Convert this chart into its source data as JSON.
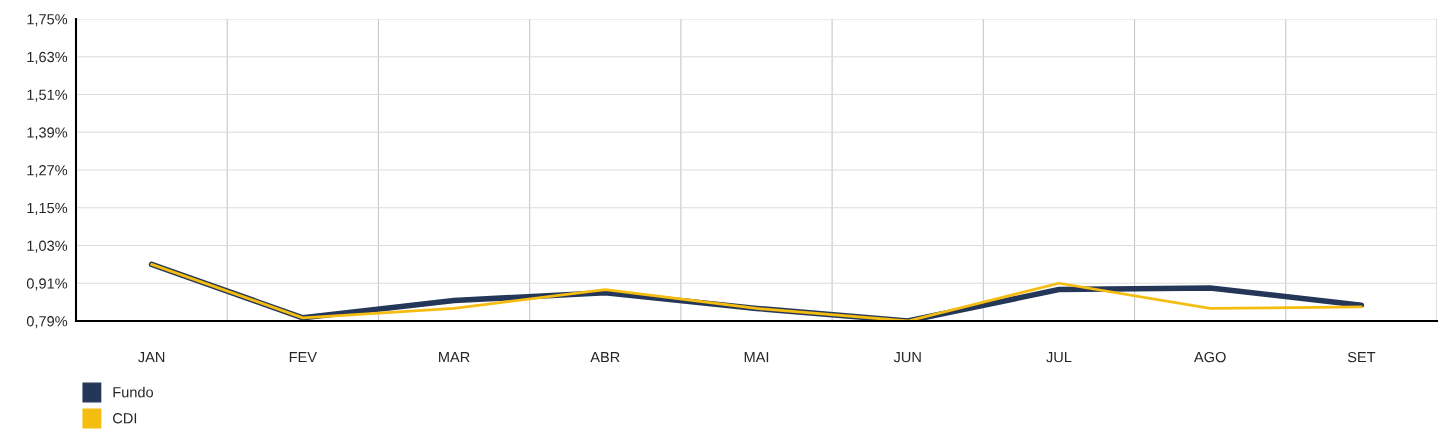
{
  "chart_data": {
    "type": "line",
    "categories": [
      "JAN",
      "FEV",
      "MAR",
      "ABR",
      "MAI",
      "JUN",
      "JUL",
      "AGO",
      "SET"
    ],
    "series": [
      {
        "name": "Fundo",
        "color": "#253758",
        "values": [
          0.97,
          0.8,
          0.855,
          0.88,
          0.83,
          0.79,
          0.89,
          0.895,
          0.84
        ]
      },
      {
        "name": "CDI",
        "color": "#f5bd0f",
        "values": [
          0.97,
          0.8,
          0.83,
          0.89,
          0.83,
          0.79,
          0.91,
          0.83,
          0.835
        ]
      }
    ],
    "ylim": [
      0.79,
      1.75
    ],
    "yticks": [
      {
        "value": 0.79,
        "label": "0,79%"
      },
      {
        "value": 0.91,
        "label": "0,91%"
      },
      {
        "value": 1.03,
        "label": "1,03%"
      },
      {
        "value": 1.15,
        "label": "1,15%"
      },
      {
        "value": 1.27,
        "label": "1,27%"
      },
      {
        "value": 1.39,
        "label": "1,39%"
      },
      {
        "value": 1.51,
        "label": "1,51%"
      },
      {
        "value": 1.63,
        "label": "1,63%"
      },
      {
        "value": 1.75,
        "label": "1,75%"
      }
    ],
    "grid": true,
    "legend": "bottom left",
    "marker": "none",
    "line_style": "solid"
  }
}
